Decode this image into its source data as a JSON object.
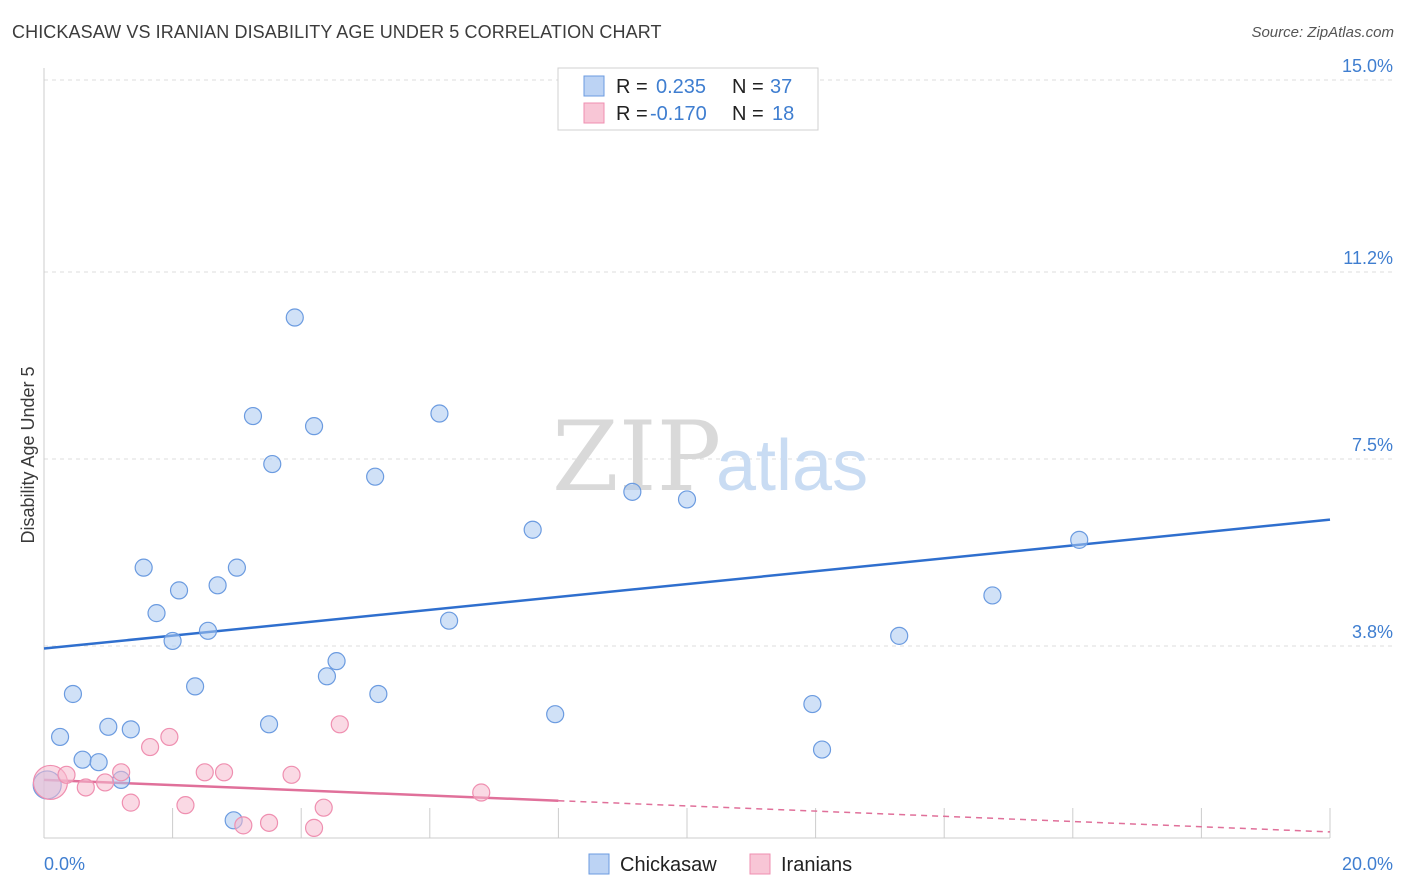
{
  "title": "CHICKASAW VS IRANIAN DISABILITY AGE UNDER 5 CORRELATION CHART",
  "source": "Source: ZipAtlas.com",
  "watermark": {
    "zip": "ZIP",
    "atlas": "atlas"
  },
  "legend": {
    "rows": [
      {
        "r_label": "R =",
        "r_value": "0.235",
        "n_label": "N =",
        "n_value": "37"
      },
      {
        "r_label": "R =",
        "r_value": "-0.170",
        "n_label": "N =",
        "n_value": "18"
      }
    ]
  },
  "bottom_legend": [
    "Chickasaw",
    "Iranians"
  ],
  "chart_data": {
    "type": "scatter",
    "ylabel": "Disability Age Under 5",
    "xlabel": "",
    "xlim": [
      0,
      20
    ],
    "ylim": [
      0,
      15
    ],
    "x_ticks": [
      "0.0%",
      "20.0%"
    ],
    "y_ticks": [
      {
        "value": 3.8,
        "label": "3.8%"
      },
      {
        "value": 7.5,
        "label": "7.5%"
      },
      {
        "value": 11.2,
        "label": "11.2%"
      },
      {
        "value": 15.0,
        "label": "15.0%"
      }
    ],
    "colors": {
      "Chickasaw": "#6b9be0",
      "Iranians": "#ef8fb0",
      "Chickasaw_line": "#2f6fce",
      "Iranians_line": "#e0709a",
      "tick": "#3f7ed0"
    },
    "series": [
      {
        "name": "Chickasaw",
        "points": [
          [
            0.05,
            1.05
          ],
          [
            0.25,
            2.0
          ],
          [
            0.45,
            2.85
          ],
          [
            0.6,
            1.55
          ],
          [
            0.85,
            1.5
          ],
          [
            1.0,
            2.2
          ],
          [
            1.2,
            1.15
          ],
          [
            1.35,
            2.15
          ],
          [
            1.55,
            5.35
          ],
          [
            1.75,
            4.45
          ],
          [
            2.0,
            3.9
          ],
          [
            2.1,
            4.9
          ],
          [
            2.35,
            3.0
          ],
          [
            2.55,
            4.1
          ],
          [
            2.7,
            5.0
          ],
          [
            2.95,
            0.35
          ],
          [
            3.0,
            5.35
          ],
          [
            3.25,
            8.35
          ],
          [
            3.5,
            2.25
          ],
          [
            3.55,
            7.4
          ],
          [
            3.9,
            10.3
          ],
          [
            4.2,
            8.15
          ],
          [
            4.4,
            3.2
          ],
          [
            4.55,
            3.5
          ],
          [
            5.15,
            7.15
          ],
          [
            5.2,
            2.85
          ],
          [
            6.3,
            4.3
          ],
          [
            6.15,
            8.4
          ],
          [
            7.6,
            6.1
          ],
          [
            7.95,
            2.45
          ],
          [
            9.15,
            6.85
          ],
          [
            10.0,
            6.7
          ],
          [
            11.95,
            2.65
          ],
          [
            12.1,
            1.75
          ],
          [
            13.3,
            4.0
          ],
          [
            14.75,
            4.8
          ],
          [
            16.1,
            5.9
          ]
        ],
        "trend": {
          "x": [
            0,
            20
          ],
          "y": [
            3.75,
            6.3
          ]
        }
      },
      {
        "name": "Iranians",
        "points": [
          [
            0.1,
            1.1
          ],
          [
            0.35,
            1.25
          ],
          [
            0.65,
            1.0
          ],
          [
            0.95,
            1.1
          ],
          [
            1.2,
            1.3
          ],
          [
            1.35,
            0.7
          ],
          [
            1.65,
            1.8
          ],
          [
            1.95,
            2.0
          ],
          [
            2.2,
            0.65
          ],
          [
            2.5,
            1.3
          ],
          [
            2.8,
            1.3
          ],
          [
            3.1,
            0.25
          ],
          [
            3.5,
            0.3
          ],
          [
            3.85,
            1.25
          ],
          [
            4.2,
            0.2
          ],
          [
            4.35,
            0.6
          ],
          [
            4.6,
            2.25
          ],
          [
            6.8,
            0.9
          ]
        ],
        "trend": {
          "x": [
            0,
            20
          ],
          "y": [
            1.15,
            0.12
          ]
        },
        "trend_solid_until_x": 8.0
      }
    ]
  }
}
